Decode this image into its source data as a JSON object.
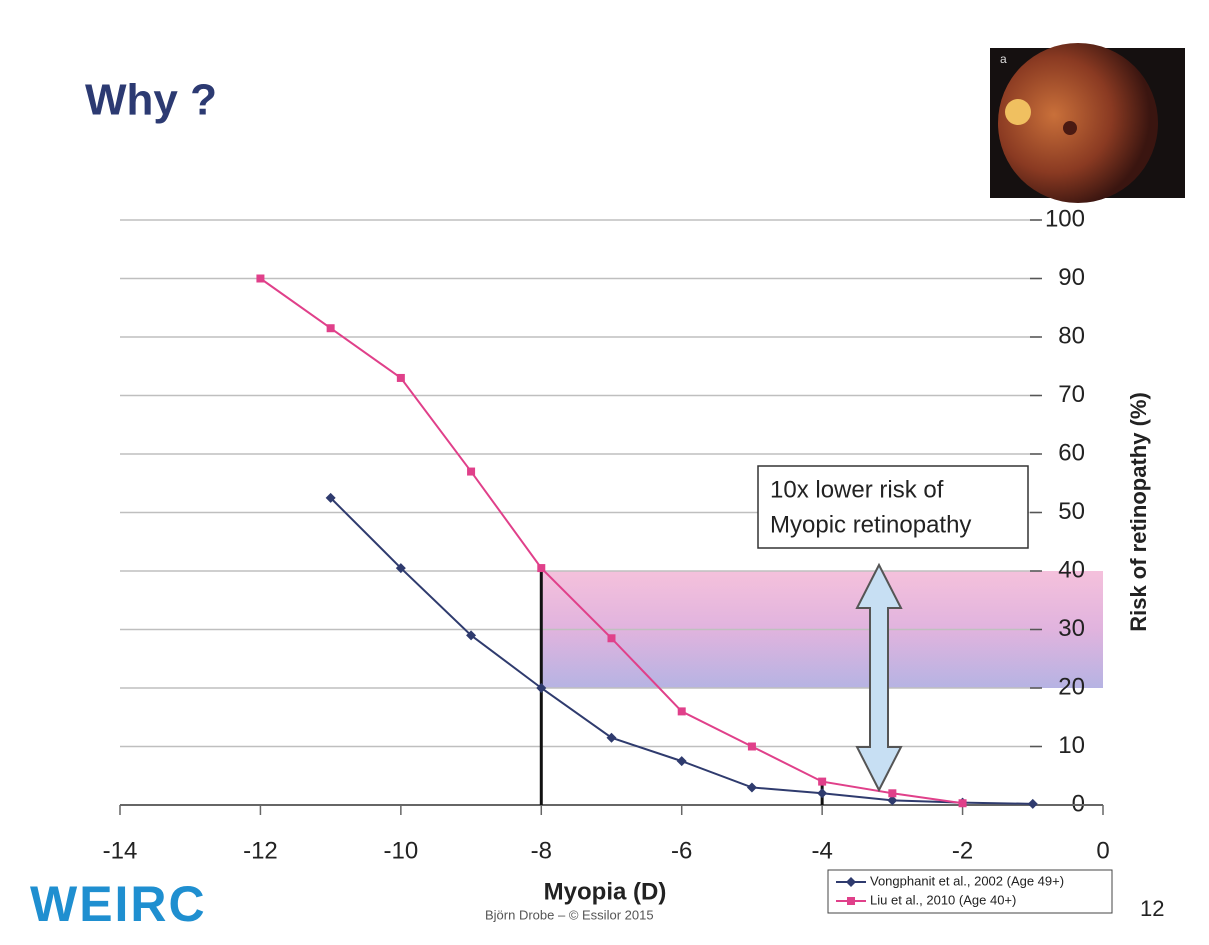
{
  "slide": {
    "title": "Why ?",
    "photo_label": "a",
    "logo": "WEIRC",
    "credit": "Björn Drobe – © Essilor 2015",
    "page_number": "12"
  },
  "chart_data": {
    "type": "line",
    "xlabel": "Myopia (D)",
    "ylabel": "Risk of retinopathy (%)",
    "xlim": [
      -14,
      0
    ],
    "xticks": [
      -14,
      -12,
      -10,
      -8,
      -6,
      -4,
      -2,
      0
    ],
    "ylim": [
      0,
      100
    ],
    "yticks": [
      0,
      10,
      20,
      30,
      40,
      50,
      60,
      70,
      80,
      90,
      100
    ],
    "grid": true,
    "series": [
      {
        "name": "Vongphanit et al., 2002 (Age 49+)",
        "color": "#2f3b6e",
        "marker": "diamond",
        "x": [
          -11,
          -10,
          -9,
          -8,
          -7,
          -6,
          -5,
          -4,
          -3,
          -2,
          -1
        ],
        "values": [
          52.5,
          40.5,
          29,
          20,
          11.5,
          7.5,
          3,
          2,
          0.8,
          0.4,
          0.2
        ]
      },
      {
        "name": "Liu et al., 2010 (Age 40+)",
        "color": "#e0408a",
        "marker": "square",
        "x": [
          -12,
          -11,
          -10,
          -9,
          -8,
          -7,
          -6,
          -5,
          -4,
          -3,
          -2
        ],
        "values": [
          90,
          81.5,
          73,
          57,
          40.5,
          28.5,
          16,
          10,
          4,
          2,
          0.3
        ]
      }
    ],
    "highlight_band": {
      "x_from": -8,
      "y_from": 20,
      "y_to": 40
    },
    "reference_lines": [
      {
        "x": -8,
        "y": 40
      },
      {
        "x": -4,
        "y": 4
      }
    ],
    "annotation": [
      "10x lower risk of",
      "Myopic retinopathy"
    ]
  }
}
